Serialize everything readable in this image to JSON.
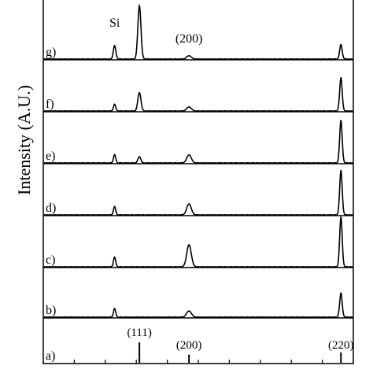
{
  "chart_data": {
    "type": "line",
    "title": "",
    "xlabel": "",
    "ylabel": "Intensity (A.U.)",
    "x_range": [
      0,
      100
    ],
    "grid": false,
    "panels": [
      {
        "label": "g)",
        "peaks": [
          {
            "x": 23,
            "height": 0.36,
            "width": 0.9
          },
          {
            "x": 31,
            "height": 1.45,
            "width": 1.1
          },
          {
            "x": 47,
            "height": 0.09,
            "width": 1.6
          },
          {
            "x": 96,
            "height": 0.39,
            "width": 0.9
          }
        ]
      },
      {
        "label": "f)",
        "peaks": [
          {
            "x": 23,
            "height": 0.18,
            "width": 0.8
          },
          {
            "x": 31,
            "height": 0.5,
            "width": 1.1
          },
          {
            "x": 47,
            "height": 0.11,
            "width": 1.6
          },
          {
            "x": 96,
            "height": 0.9,
            "width": 0.9
          }
        ]
      },
      {
        "label": "e)",
        "peaks": [
          {
            "x": 23,
            "height": 0.22,
            "width": 0.8
          },
          {
            "x": 31,
            "height": 0.17,
            "width": 1.0
          },
          {
            "x": 47,
            "height": 0.22,
            "width": 1.6
          },
          {
            "x": 96,
            "height": 1.15,
            "width": 0.9
          }
        ]
      },
      {
        "label": "d)",
        "peaks": [
          {
            "x": 23,
            "height": 0.22,
            "width": 0.8
          },
          {
            "x": 47,
            "height": 0.3,
            "width": 1.6
          },
          {
            "x": 96,
            "height": 1.2,
            "width": 0.9
          }
        ]
      },
      {
        "label": "c)",
        "peaks": [
          {
            "x": 23,
            "height": 0.26,
            "width": 0.8
          },
          {
            "x": 47,
            "height": 0.6,
            "width": 1.6
          },
          {
            "x": 96,
            "height": 1.35,
            "width": 0.9
          }
        ]
      },
      {
        "label": "b)",
        "peaks": [
          {
            "x": 23,
            "height": 0.23,
            "width": 0.8
          },
          {
            "x": 47,
            "height": 0.17,
            "width": 1.7
          },
          {
            "x": 96,
            "height": 0.65,
            "width": 0.9
          }
        ]
      },
      {
        "label": "a)",
        "reference": true,
        "peaks": [
          {
            "x": 31,
            "height": 0.55
          },
          {
            "x": 47,
            "height": 0.22
          },
          {
            "x": 96,
            "height": 0.28
          }
        ]
      }
    ],
    "annotations": [
      {
        "text": "Si",
        "panel": "g)",
        "x": 23
      },
      {
        "text": "(200)",
        "panel": "g)",
        "x": 47
      },
      {
        "text": "(111)",
        "panel": "a)",
        "x": 31
      },
      {
        "text": "(200)",
        "panel": "a)",
        "x": 47
      },
      {
        "text": "(220)",
        "panel": "a)",
        "x": 96
      }
    ]
  }
}
